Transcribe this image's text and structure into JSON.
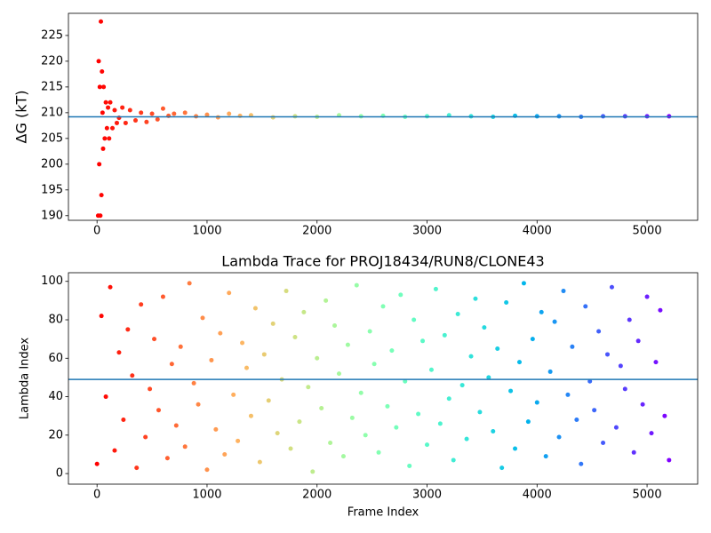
{
  "chart_data": [
    {
      "type": "scatter",
      "ylabel": "ΔG (kT)",
      "x": [
        10,
        15,
        20,
        25,
        30,
        35,
        40,
        45,
        50,
        55,
        60,
        70,
        80,
        90,
        100,
        110,
        120,
        140,
        160,
        180,
        200,
        230,
        260,
        300,
        350,
        400,
        450,
        500,
        550,
        600,
        650,
        700,
        800,
        900,
        1000,
        1100,
        1200,
        1300,
        1400,
        1600,
        1800,
        2000,
        2200,
        2400,
        2600,
        2800,
        3000,
        3200,
        3400,
        3600,
        3800,
        4000,
        4200,
        4400,
        4600,
        4800,
        5000,
        5200
      ],
      "values": [
        190,
        220,
        200,
        215,
        190,
        227.7,
        194,
        218,
        210,
        203,
        215,
        205,
        212,
        207,
        211,
        205,
        212,
        207,
        210.5,
        208,
        209,
        211,
        208,
        210.5,
        208.5,
        210,
        208.2,
        209.8,
        208.7,
        210.8,
        209.4,
        209.8,
        210,
        209.3,
        209.6,
        209.1,
        209.8,
        209.4,
        209.5,
        209.1,
        209.3,
        209.2,
        209.5,
        209.3,
        209.4,
        209.2,
        209.3,
        209.5,
        209.3,
        209.2,
        209.4,
        209.3,
        209.3,
        209.2,
        209.3,
        209.3,
        209.3,
        209.3
      ],
      "colormap": "rainbow_r",
      "hline": 209.2,
      "hline_color": "#1f77b4",
      "xlim": [
        -260,
        5460
      ],
      "ylim": [
        189.1,
        229.3
      ],
      "xticks": [
        0,
        1000,
        2000,
        3000,
        4000,
        5000
      ],
      "yticks": [
        190,
        195,
        200,
        205,
        210,
        215,
        220,
        225
      ]
    },
    {
      "type": "scatter",
      "title": "Lambda Trace for PROJ18434/RUN8/CLONE43",
      "xlabel": "Frame Index",
      "ylabel": "Lambda Index",
      "x": [
        0,
        40,
        80,
        120,
        160,
        200,
        240,
        280,
        320,
        360,
        400,
        440,
        480,
        520,
        560,
        600,
        640,
        680,
        720,
        760,
        800,
        840,
        880,
        920,
        960,
        1000,
        1040,
        1080,
        1120,
        1160,
        1200,
        1240,
        1280,
        1320,
        1360,
        1400,
        1440,
        1480,
        1520,
        1560,
        1600,
        1640,
        1680,
        1720,
        1760,
        1800,
        1840,
        1880,
        1920,
        1960,
        2000,
        2040,
        2080,
        2120,
        2160,
        2200,
        2240,
        2280,
        2320,
        2360,
        2400,
        2440,
        2480,
        2520,
        2560,
        2600,
        2640,
        2680,
        2720,
        2760,
        2800,
        2840,
        2880,
        2920,
        2960,
        3000,
        3040,
        3080,
        3120,
        3160,
        3200,
        3240,
        3280,
        3320,
        3360,
        3400,
        3440,
        3480,
        3520,
        3560,
        3600,
        3640,
        3680,
        3720,
        3760,
        3800,
        3840,
        3880,
        3920,
        3960,
        4000,
        4040,
        4080,
        4120,
        4160,
        4200,
        4240,
        4280,
        4320,
        4360,
        4400,
        4440,
        4480,
        4520,
        4560,
        4600,
        4640,
        4680,
        4720,
        4760,
        4800,
        4840,
        4880,
        4920,
        4960,
        5000,
        5040,
        5080,
        5120,
        5160,
        5200
      ],
      "values": [
        5,
        82,
        40,
        97,
        12,
        63,
        28,
        75,
        51,
        3,
        88,
        19,
        44,
        70,
        33,
        92,
        8,
        57,
        25,
        66,
        14,
        99,
        47,
        36,
        81,
        2,
        59,
        23,
        73,
        10,
        94,
        41,
        17,
        68,
        55,
        30,
        86,
        6,
        62,
        38,
        78,
        21,
        49,
        95,
        13,
        71,
        27,
        84,
        45,
        1,
        60,
        34,
        90,
        16,
        77,
        52,
        9,
        67,
        29,
        98,
        42,
        20,
        74,
        57,
        11,
        87,
        35,
        64,
        24,
        93,
        48,
        4,
        80,
        31,
        69,
        15,
        54,
        96,
        26,
        72,
        39,
        7,
        83,
        46,
        18,
        61,
        91,
        32,
        76,
        50,
        22,
        65,
        3,
        89,
        43,
        13,
        58,
        99,
        27,
        70,
        37,
        84,
        9,
        53,
        79,
        19,
        95,
        41,
        66,
        28,
        5,
        87,
        48,
        33,
        74,
        16,
        62,
        97,
        24,
        56,
        44,
        80,
        11,
        69,
        36,
        92,
        21,
        58,
        85,
        30,
        7
      ],
      "colormap": "rainbow_r",
      "hline": 49,
      "hline_color": "#1f77b4",
      "xlim": [
        -260,
        5460
      ],
      "ylim": [
        -5.5,
        104.5
      ],
      "xticks": [
        0,
        1000,
        2000,
        3000,
        4000,
        5000
      ],
      "yticks": [
        0,
        20,
        40,
        60,
        80,
        100
      ]
    }
  ]
}
